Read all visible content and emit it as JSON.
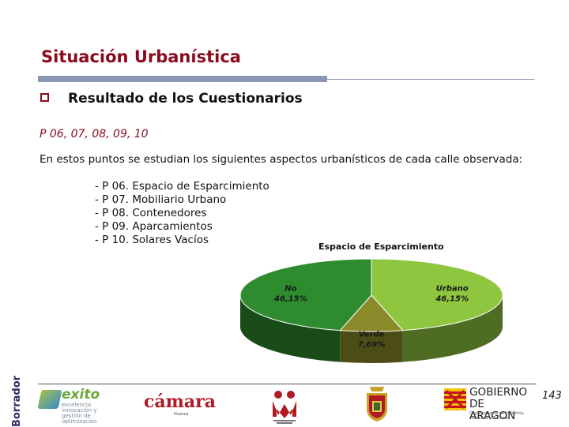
{
  "page": {
    "title": "Situación Urbanística",
    "bullet_heading": "Resultado de los Cuestionarios",
    "points_line": "P 06, 07, 08, 09, 10",
    "intro": "En estos puntos se estudian los siguientes aspectos urbanísticos de cada calle observada:",
    "items": [
      "- P 06. Espacio de Esparcimiento",
      "- P 07. Mobiliario Urbano",
      "- P 08. Contenedores",
      "- P 09. Aparcamientos",
      "- P 10. Solares Vacíos"
    ],
    "page_number": "143",
    "watermark": "Borrador"
  },
  "chart_data": {
    "type": "pie",
    "title": "Espacio de Esparcimiento",
    "slices": [
      {
        "label": "Urbano",
        "value": 46.15,
        "value_label": "46,15%",
        "color": "#8ec63f"
      },
      {
        "label": "Verde",
        "value": 7.69,
        "value_label": "7,69%",
        "color": "#8a8a2a"
      },
      {
        "label": "No",
        "value": 46.15,
        "value_label": "46,15%",
        "color": "#2e8b2e"
      }
    ]
  },
  "logos": {
    "exito": {
      "word": "exito",
      "sub": "excelencia innovación y gestión de optimización"
    },
    "camara": {
      "word": "cámara",
      "sub": "Huesca"
    },
    "aragon": {
      "name_line1": "GOBIERNO",
      "name_line2": "DE ARAGON",
      "sub": "Departamento de Industria, Comercio y Turismo"
    }
  }
}
